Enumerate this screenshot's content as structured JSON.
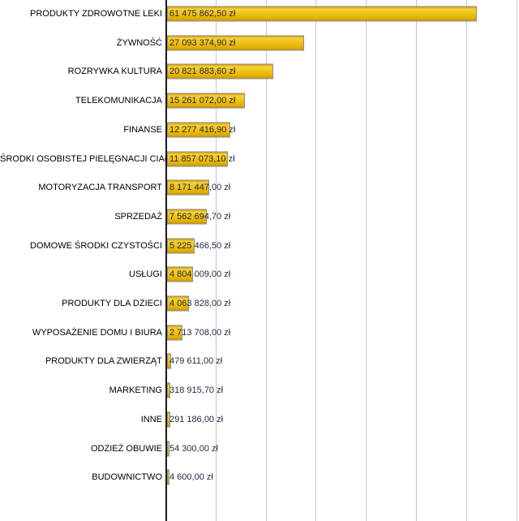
{
  "chart_data": {
    "type": "bar",
    "orientation": "horizontal",
    "title": "",
    "xlabel": "",
    "ylabel": "",
    "currency_suffix": "zł",
    "categories": [
      "PRODUKTY ZDROWOTNE LEKI",
      "ŻYWNOŚĆ",
      "ROZRYWKA KULTURA",
      "TELEKOMUNIKACJA",
      "FINANSE",
      "ŚRODKI OSOBISTEJ PIELĘGNACJI CIAŁA",
      "MOTORYZACJA TRANSPORT",
      "SPRZEDAŻ",
      "DOMOWE ŚRODKI CZYSTOŚCI",
      "USŁUGI",
      "PRODUKTY DLA DZIECI",
      "WYPOSAŻENIE DOMU I BIURA",
      "PRODUKTY DLA ZWIERZĄT",
      "MARKETING",
      "INNE",
      "ODZIEŻ OBUWIE",
      "BUDOWNICTWO"
    ],
    "values": [
      61475862.5,
      27093374.9,
      20821883.6,
      15261072.0,
      12277416.9,
      11857073.1,
      8171447.0,
      7562694.7,
      5225466.5,
      4804009.0,
      4063828.0,
      2713708.0,
      479611.0,
      318915.7,
      291186.0,
      54300.0,
      4600.0
    ],
    "value_labels": [
      "61 475 862,50 zł",
      "27 093 374,90 zł",
      "20 821 883,60 zł",
      "15 261 072,00 zł",
      "12 277 416,90 zł",
      "11 857 073,10 zł",
      "8 171 447,00 zł",
      "7 562 694,70 zł",
      "5 225 466,50 zł",
      "4 804 009,00 zł",
      "4 063 828,00 zł",
      "2 713 708,00 zł",
      "479 611,00 zł",
      "318 915,70 zł",
      "291 186,00 zł",
      "54 300,00 zł",
      "4 600,00 zł"
    ],
    "axis": {
      "x_min": 0,
      "x_max": 70000000,
      "x_gridline_interval": 10000000,
      "gridline_count": 7,
      "grid": true,
      "x_tick_labels_visible": false,
      "legend": "none"
    },
    "colors": {
      "background": "#ffffff",
      "bar_gradient_top": "#cfa106",
      "bar_highlight": "#f8d03a",
      "bar_mid": "#efbf12",
      "bar_mid2": "#e2ae08",
      "bar_bottom": "#c89b04",
      "bar_border": "#8e8e8e",
      "gridline": "#c6c6c6",
      "axis_line": "#1a1a1a",
      "value_text": "#1f2940",
      "category_text": "#000000"
    }
  }
}
